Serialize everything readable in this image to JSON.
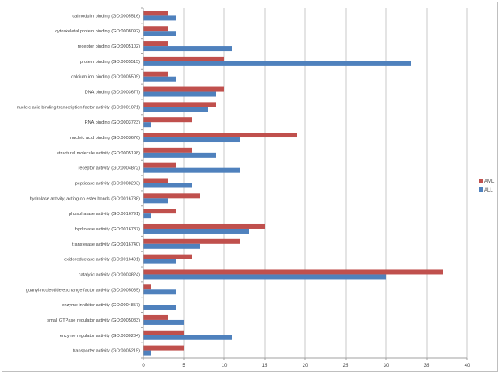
{
  "chart_data": {
    "type": "bar",
    "orientation": "horizontal",
    "title": "",
    "xlabel": "",
    "ylabel": "",
    "xlim": [
      0,
      40
    ],
    "xticks": [
      0,
      5,
      10,
      15,
      20,
      25,
      30,
      35,
      40
    ],
    "grid": true,
    "legend_position": "right",
    "categories": [
      "calmodulin binding (GO:0005516)",
      "cytoskeletal protein binding (GO:0008092)",
      "receptor binding (GO:0005102)",
      "protein binding (GO:0005515)",
      "calcium ion binding (GO:0005509)",
      "DNA binding (GO:0003677)",
      "nucleic acid binding transcription factor activity (GO:0001071)",
      "RNA binding (GO:0003723)",
      "nucleic acid binding (GO:0003676)",
      "structural molecule activity (GO:0005198)",
      "receptor activity (GO:0004872)",
      "peptidase activity  (GO:0008233)",
      "hydrolase activity,  acting on ester bonds (GO:0016788)",
      "phosphatase activity (GO:0016791)",
      "hydrolase activity (GO:0016787)",
      "transferase activity (GO:0016740)",
      "oxidoreductase activity (GO:0016491)",
      "catalytic activity (GO:0003824)",
      "guanyl-nucleotide exchange factor activity (GO:0005085)",
      "enzyme inhibitor activity (GO:0004857)",
      "small GTPase  regulator activity (GO:0005083)",
      "enzyme regulator activity  (GO:0030234)",
      "transporter activity (GO:0005215)"
    ],
    "series": [
      {
        "name": "AML",
        "color": "#c0504d",
        "values": [
          3,
          3,
          3,
          10,
          3,
          10,
          9,
          6,
          19,
          6,
          4,
          3,
          7,
          4,
          15,
          12,
          6,
          37,
          1,
          0,
          3,
          5,
          5
        ]
      },
      {
        "name": "ALL",
        "color": "#4f81bd",
        "values": [
          4,
          4,
          11,
          33,
          4,
          9,
          8,
          1,
          12,
          9,
          12,
          6,
          3,
          1,
          13,
          7,
          4,
          30,
          4,
          4,
          5,
          11,
          1
        ]
      }
    ]
  }
}
